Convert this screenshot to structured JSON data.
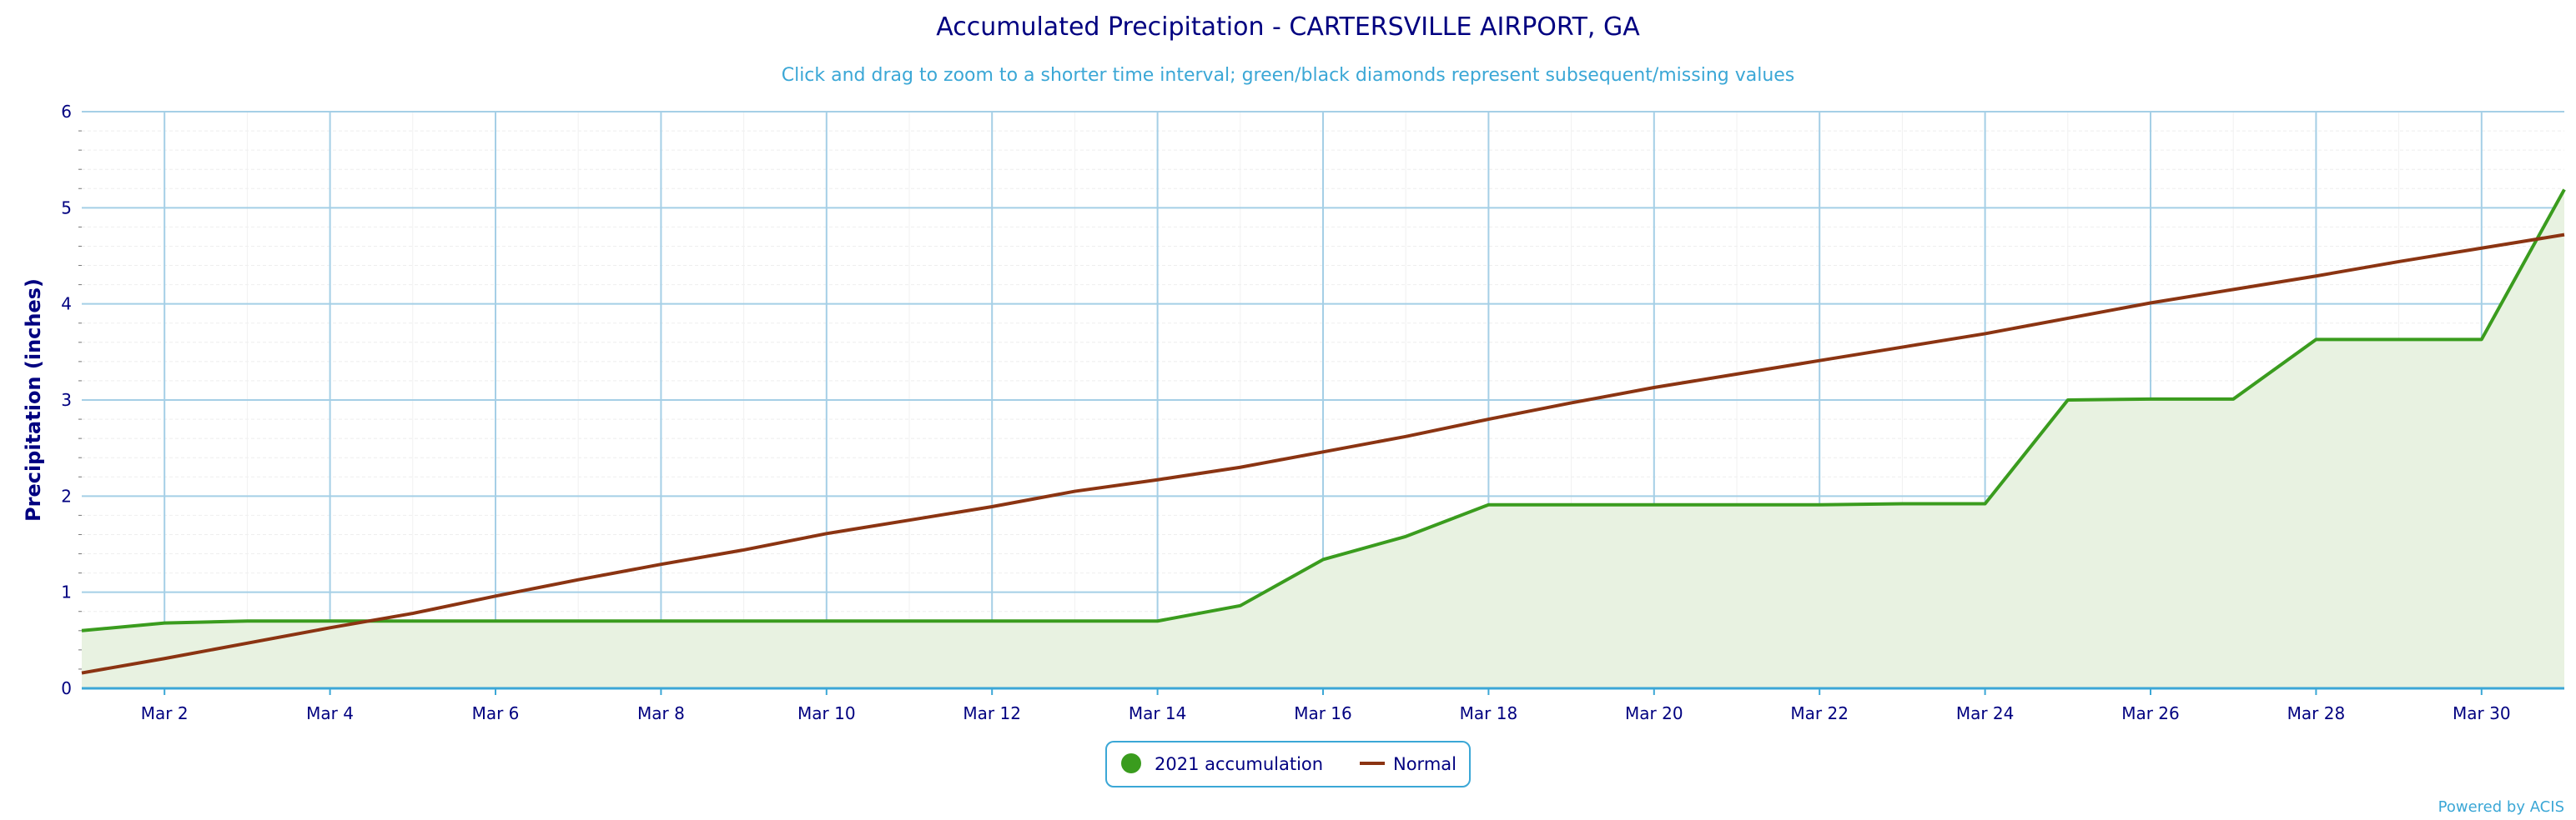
{
  "chart_data": {
    "type": "area",
    "title": "Accumulated Precipitation - CARTERSVILLE AIRPORT, GA",
    "subtitle": "Click and drag to zoom to a shorter time interval; green/black diamonds represent subsequent/missing values",
    "ylabel": "Precipitation (inches)",
    "xlabel": "",
    "ylim": [
      0,
      6
    ],
    "yticks": [
      0,
      1,
      2,
      3,
      4,
      5,
      6
    ],
    "xlim": [
      1,
      31
    ],
    "xticks": [
      {
        "day": 2,
        "label": "Mar 2"
      },
      {
        "day": 4,
        "label": "Mar 4"
      },
      {
        "day": 6,
        "label": "Mar 6"
      },
      {
        "day": 8,
        "label": "Mar 8"
      },
      {
        "day": 10,
        "label": "Mar 10"
      },
      {
        "day": 12,
        "label": "Mar 12"
      },
      {
        "day": 14,
        "label": "Mar 14"
      },
      {
        "day": 16,
        "label": "Mar 16"
      },
      {
        "day": 18,
        "label": "Mar 18"
      },
      {
        "day": 20,
        "label": "Mar 20"
      },
      {
        "day": 22,
        "label": "Mar 22"
      },
      {
        "day": 24,
        "label": "Mar 24"
      },
      {
        "day": 26,
        "label": "Mar 26"
      },
      {
        "day": 28,
        "label": "Mar 28"
      },
      {
        "day": 30,
        "label": "Mar 30"
      }
    ],
    "grid": true,
    "legend_position": "bottom-center",
    "x": [
      1,
      2,
      3,
      4,
      5,
      6,
      7,
      8,
      9,
      10,
      11,
      12,
      13,
      14,
      15,
      16,
      17,
      18,
      19,
      20,
      21,
      22,
      23,
      24,
      25,
      26,
      27,
      28,
      29,
      30,
      31
    ],
    "series": [
      {
        "name": "2021 accumulation",
        "type": "area",
        "color": "#3a9c1e",
        "fill": "#e8f2e1",
        "values": [
          0.6,
          0.68,
          0.7,
          0.7,
          0.7,
          0.7,
          0.7,
          0.7,
          0.7,
          0.7,
          0.7,
          0.7,
          0.7,
          0.7,
          0.86,
          1.34,
          1.58,
          1.91,
          1.91,
          1.91,
          1.91,
          1.91,
          1.92,
          1.92,
          3.0,
          3.01,
          3.01,
          3.63,
          3.63,
          3.63,
          5.19
        ]
      },
      {
        "name": "Normal",
        "type": "line",
        "color": "#8b3412",
        "values": [
          0.16,
          0.31,
          0.47,
          0.63,
          0.78,
          0.96,
          1.13,
          1.29,
          1.44,
          1.61,
          1.75,
          1.89,
          2.05,
          2.17,
          2.3,
          2.46,
          2.62,
          2.8,
          2.97,
          3.13,
          3.27,
          3.41,
          3.55,
          3.69,
          3.85,
          4.01,
          4.15,
          4.29,
          4.44,
          4.58,
          4.72
        ]
      }
    ]
  },
  "footer": {
    "credit": "Powered by ACIS"
  }
}
